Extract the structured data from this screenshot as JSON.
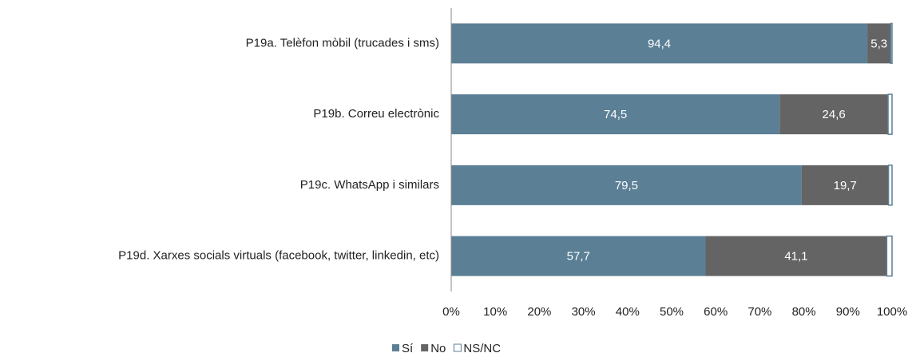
{
  "chart_data": {
    "type": "stacked_bar_horizontal",
    "categories": [
      "P19a. Telèfon mòbil (trucades i sms)",
      "P19b. Correu electrònic",
      "P19c. WhatsApp i similars",
      "P19d. Xarxes socials virtuals (facebook, twitter, linkedin, etc)"
    ],
    "series": [
      {
        "name": "Sí",
        "color": "#5b7f95",
        "values": [
          94.4,
          74.5,
          79.5,
          57.7
        ],
        "value_labels": [
          "94,4",
          "74,5",
          "79,5",
          "57,7"
        ]
      },
      {
        "name": "No",
        "color": "#646464",
        "values": [
          5.3,
          24.6,
          19.7,
          41.1
        ],
        "value_labels": [
          "5,3",
          "24,6",
          "19,7",
          "41,1"
        ]
      },
      {
        "name": "NS/NC",
        "color": "#ffffff",
        "values": [
          0.3,
          0.9,
          0.8,
          1.2
        ]
      }
    ],
    "xlim": [
      0,
      100
    ],
    "xticks": [
      {
        "value": 0,
        "label": "0%"
      },
      {
        "value": 10,
        "label": "10%"
      },
      {
        "value": 20,
        "label": "20%"
      },
      {
        "value": 30,
        "label": "30%"
      },
      {
        "value": 40,
        "label": "40%"
      },
      {
        "value": 50,
        "label": "50%"
      },
      {
        "value": 60,
        "label": "60%"
      },
      {
        "value": 70,
        "label": "70%"
      },
      {
        "value": 80,
        "label": "80%"
      },
      {
        "value": 90,
        "label": "90%"
      },
      {
        "value": 100,
        "label": "100%"
      }
    ],
    "legend": "bottom"
  }
}
